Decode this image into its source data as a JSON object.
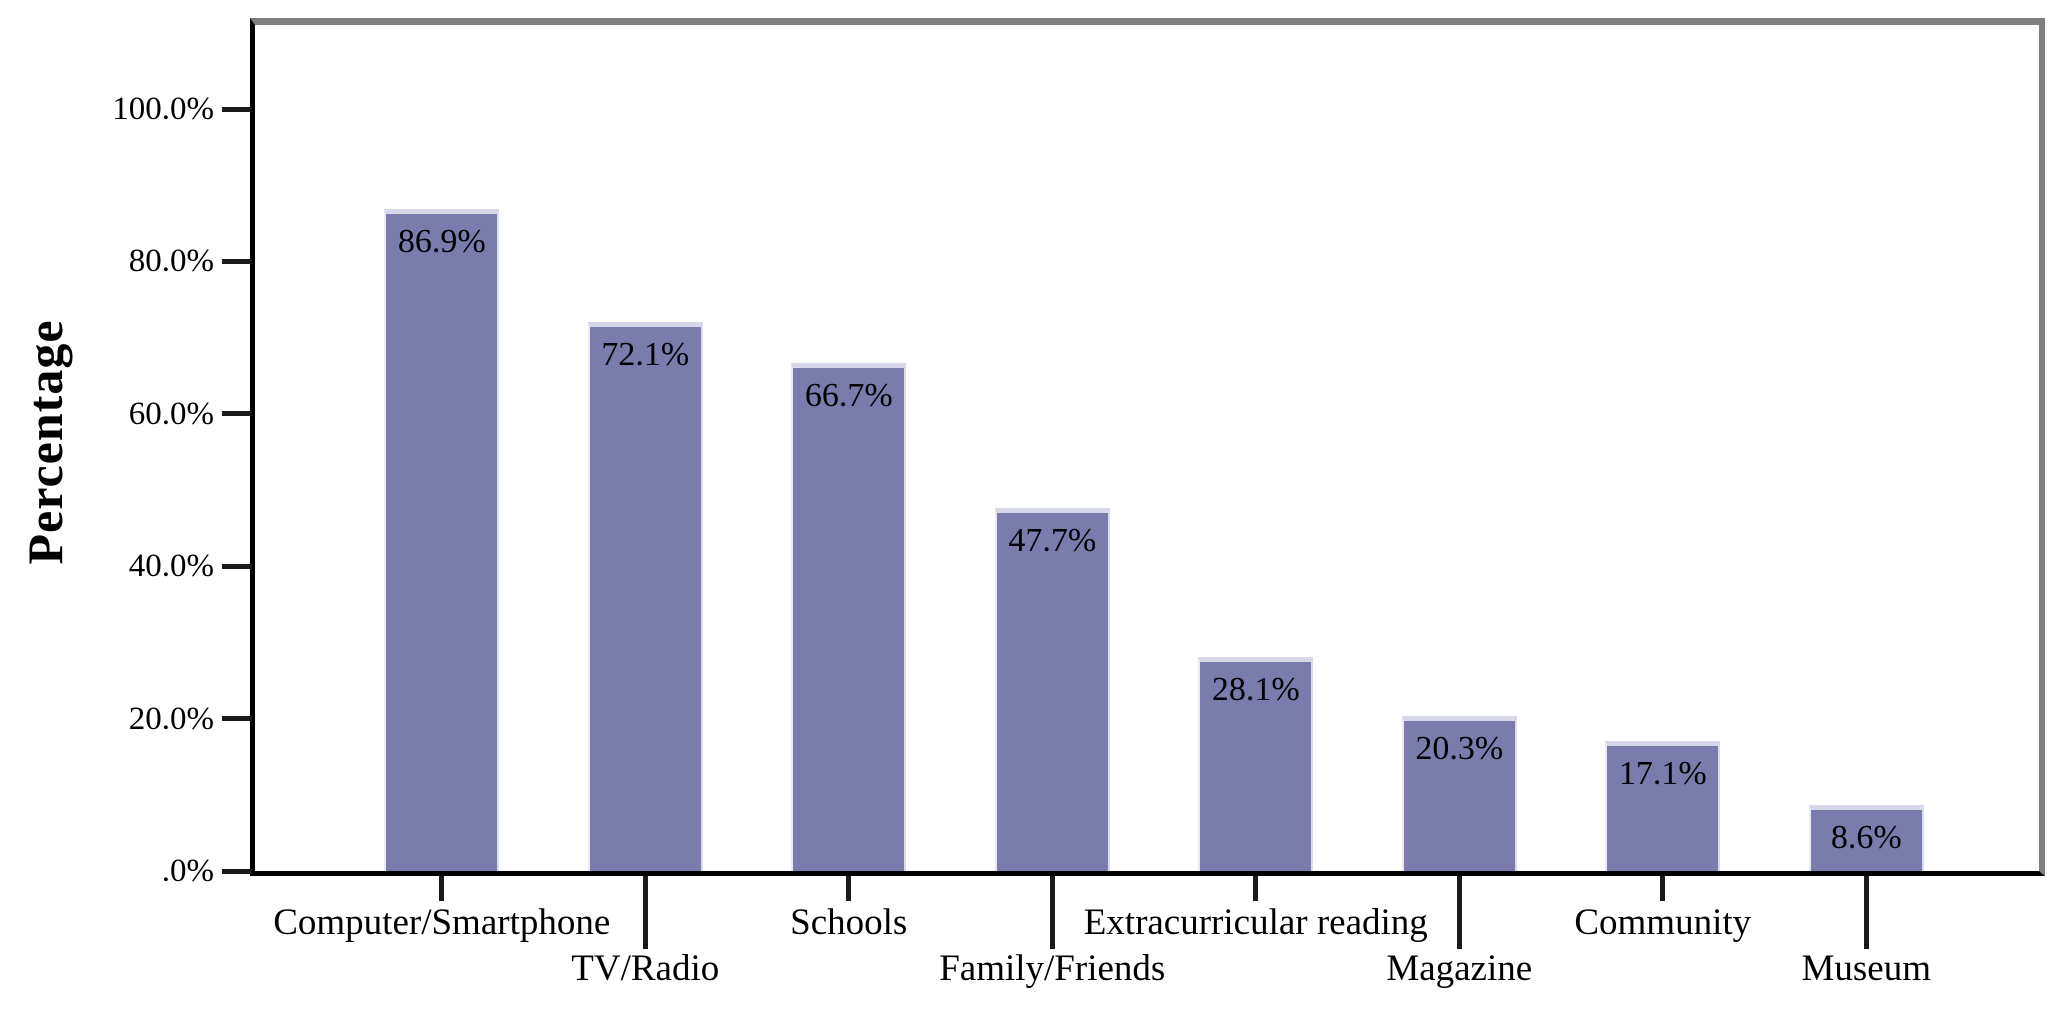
{
  "chart_data": {
    "type": "bar",
    "title": "",
    "xlabel": "",
    "ylabel": "Percentage",
    "categories": [
      "Computer/Smartphone",
      "TV/Radio",
      "Schools",
      "Family/Friends",
      "Extracurricular reading",
      "Magazine",
      "Community",
      "Museum"
    ],
    "values": [
      86.9,
      72.1,
      66.7,
      47.7,
      28.1,
      20.3,
      17.1,
      8.6
    ],
    "bar_value_labels": [
      "86.9%",
      "72.1%",
      "66.7%",
      "47.7%",
      "28.1%",
      "20.3%",
      "17.1%",
      "8.6%"
    ],
    "y_tick_labels": [
      "100.0%",
      "80.0%",
      "60.0%",
      "40.0%",
      "20.0%",
      ".0%"
    ],
    "y_tick_values": [
      100,
      80,
      60,
      40,
      20,
      0
    ],
    "ylim": [
      0,
      111
    ],
    "grid": false,
    "legend": "none",
    "category_label_layout": "staggered-two-rows",
    "bar_color": "#7a7cad",
    "bar_top_edge_color": "#d6d7e9",
    "bar_side_edge_color": "#e9e9f4",
    "frame_gray_color": "#7f7f7f",
    "axis_black_color": "#000000",
    "label_text_color": "#000000"
  }
}
